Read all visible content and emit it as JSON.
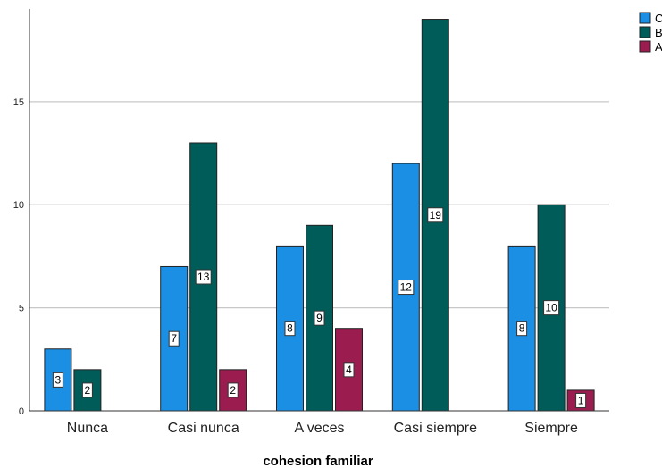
{
  "chart_data": {
    "type": "bar",
    "xlabel": "cohesion familiar",
    "ylabel": "",
    "ylim": [
      0,
      19.5
    ],
    "yticks": [
      0,
      5,
      10,
      15
    ],
    "grid": true,
    "legend_position": "top-right",
    "categories": [
      "Nunca",
      "Casi nunca",
      "A veces",
      "Casi siempre",
      "Siempre"
    ],
    "series": [
      {
        "name": "C",
        "color": "#1a8fe3",
        "values": [
          3,
          7,
          8,
          12,
          8
        ]
      },
      {
        "name": "B",
        "color": "#005c59",
        "values": [
          2,
          13,
          9,
          19,
          10
        ]
      },
      {
        "name": "A",
        "color": "#9b1c4f",
        "values": [
          null,
          2,
          4,
          null,
          1
        ]
      }
    ]
  }
}
